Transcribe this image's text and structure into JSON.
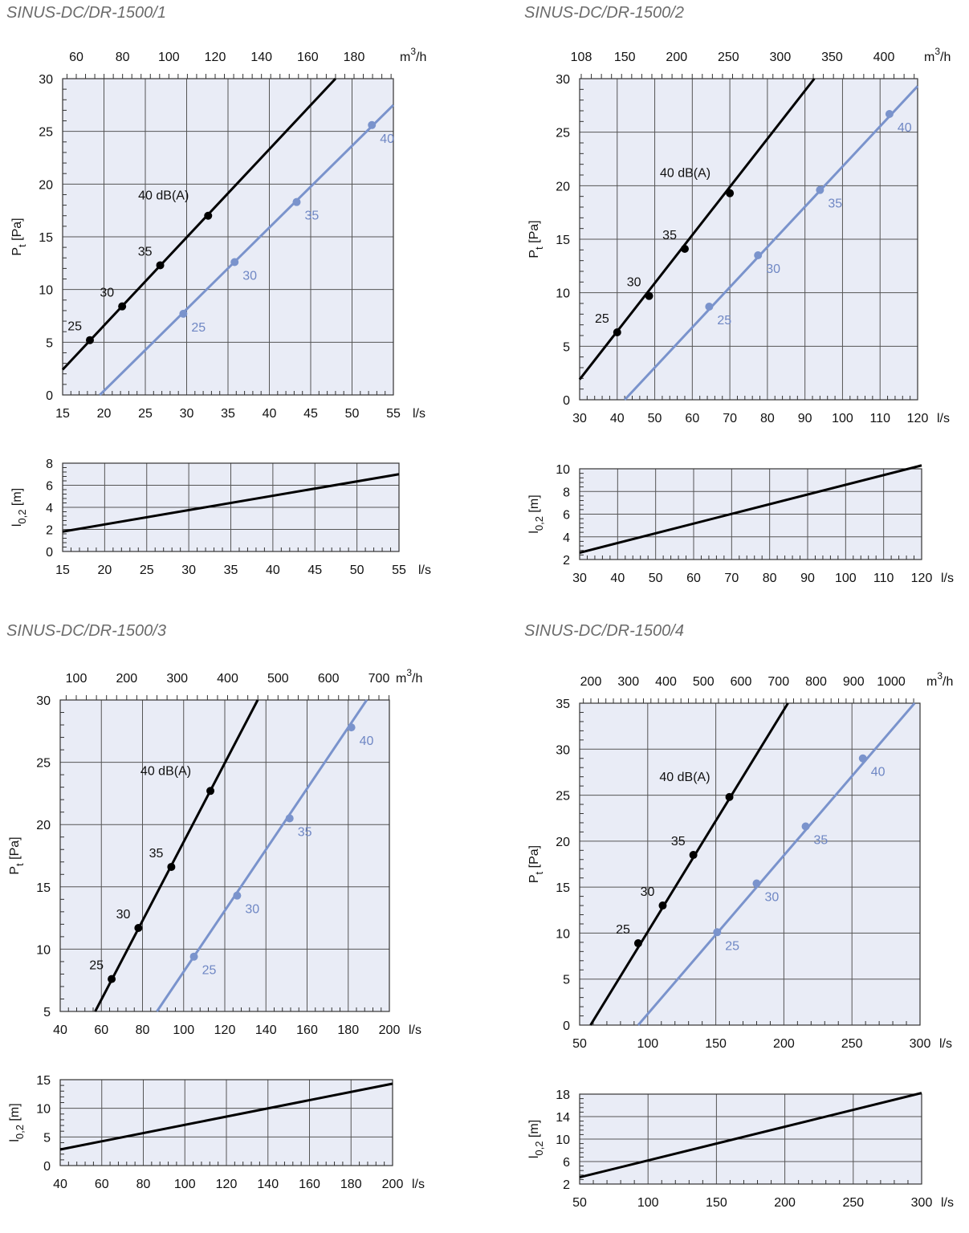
{
  "colors": {
    "plot_bg": "#e9ecf6",
    "grid": "#555555",
    "series_black": "#000000",
    "series_blue": "#7a93cc",
    "label_blue": "#6f87c4"
  },
  "chart_data": [
    {
      "id": "c1",
      "type": "line",
      "title": "SINUS-DC/DR-1500/1",
      "pressure": {
        "ylabel": "Pt [Pa]",
        "xlabel": "l/s",
        "top_xlabel": "m3/h",
        "xlim": [
          15,
          55
        ],
        "ylim": [
          0,
          30
        ],
        "xticks": [
          15,
          20,
          25,
          30,
          35,
          40,
          45,
          50,
          55
        ],
        "yticks": [
          0,
          5,
          10,
          15,
          20,
          25,
          30
        ],
        "top_ticks": [
          60,
          80,
          100,
          120,
          140,
          160,
          180
        ],
        "series": [
          {
            "color": "black",
            "line": [
              [
                15,
                2.4
              ],
              [
                48,
                30
              ]
            ],
            "points": [
              {
                "x": 18.3,
                "y": 5.2,
                "label": "25"
              },
              {
                "x": 22.2,
                "y": 8.4,
                "label": "30"
              },
              {
                "x": 26.8,
                "y": 12.3,
                "label": "35"
              },
              {
                "x": 32.6,
                "y": 17.0,
                "label": "40 dB(A)"
              }
            ]
          },
          {
            "color": "blue",
            "line": [
              [
                19.5,
                0
              ],
              [
                55,
                27.5
              ]
            ],
            "points": [
              {
                "x": 29.6,
                "y": 7.7,
                "label": "25"
              },
              {
                "x": 35.8,
                "y": 12.6,
                "label": "30"
              },
              {
                "x": 43.3,
                "y": 18.3,
                "label": "35"
              },
              {
                "x": 52.4,
                "y": 25.6,
                "label": "40"
              }
            ]
          }
        ]
      },
      "throw": {
        "ylabel": "l0,2 [m]",
        "xlabel": "l/s",
        "xlim": [
          15,
          55
        ],
        "ylim": [
          0,
          8
        ],
        "xticks": [
          15,
          20,
          25,
          30,
          35,
          40,
          45,
          50,
          55
        ],
        "yticks": [
          0,
          2,
          4,
          6,
          8
        ],
        "line": [
          [
            15,
            1.8
          ],
          [
            55,
            7.0
          ]
        ]
      }
    },
    {
      "id": "c2",
      "type": "line",
      "title": "SINUS-DC/DR-1500/2",
      "pressure": {
        "ylabel": "Pt [Pa]",
        "xlabel": "l/s",
        "top_xlabel": "m3/h",
        "xlim": [
          30,
          120
        ],
        "ylim": [
          0,
          30
        ],
        "xticks": [
          30,
          40,
          50,
          60,
          70,
          80,
          90,
          100,
          110,
          120
        ],
        "yticks": [
          0,
          5,
          10,
          15,
          20,
          25,
          30
        ],
        "top_ticks": [
          108,
          150,
          200,
          250,
          300,
          350,
          400
        ],
        "series": [
          {
            "color": "black",
            "line": [
              [
                30,
                1.9
              ],
              [
                92.5,
                30
              ]
            ],
            "points": [
              {
                "x": 40,
                "y": 6.3,
                "label": "25"
              },
              {
                "x": 48.5,
                "y": 9.7,
                "label": "30"
              },
              {
                "x": 58,
                "y": 14.1,
                "label": "35"
              },
              {
                "x": 70,
                "y": 19.3,
                "label": "40 dB(A)"
              }
            ]
          },
          {
            "color": "blue",
            "line": [
              [
                42,
                0
              ],
              [
                120,
                29.3
              ]
            ],
            "points": [
              {
                "x": 64.5,
                "y": 8.7,
                "label": "25"
              },
              {
                "x": 77.5,
                "y": 13.5,
                "label": "30"
              },
              {
                "x": 94,
                "y": 19.6,
                "label": "35"
              },
              {
                "x": 112.5,
                "y": 26.7,
                "label": "40"
              }
            ]
          }
        ]
      },
      "throw": {
        "ylabel": "l0,2 [m]",
        "xlabel": "l/s",
        "xlim": [
          30,
          120
        ],
        "ylim": [
          2,
          10
        ],
        "xticks": [
          30,
          40,
          50,
          60,
          70,
          80,
          90,
          100,
          110,
          120
        ],
        "yticks": [
          2,
          4,
          6,
          8,
          10
        ],
        "line": [
          [
            30,
            2.6
          ],
          [
            120,
            10.3
          ]
        ]
      }
    },
    {
      "id": "c3",
      "type": "line",
      "title": "SINUS-DC/DR-1500/3",
      "pressure": {
        "ylabel": "Pt [Pa]",
        "xlabel": "l/s",
        "top_xlabel": "m3/h",
        "xlim": [
          40,
          200
        ],
        "ylim": [
          5,
          30
        ],
        "xticks": [
          40,
          60,
          80,
          100,
          120,
          140,
          160,
          180,
          200
        ],
        "yticks": [
          5,
          10,
          15,
          20,
          25,
          30
        ],
        "top_ticks": [
          100,
          200,
          300,
          400,
          500,
          600,
          700
        ],
        "series": [
          {
            "color": "black",
            "line": [
              [
                57,
                5
              ],
              [
                136,
                30
              ]
            ],
            "points": [
              {
                "x": 65,
                "y": 7.6,
                "label": "25"
              },
              {
                "x": 78,
                "y": 11.7,
                "label": "30"
              },
              {
                "x": 94,
                "y": 16.6,
                "label": "35"
              },
              {
                "x": 113,
                "y": 22.7,
                "label": "40 dB(A)"
              }
            ]
          },
          {
            "color": "blue",
            "line": [
              [
                87,
                5
              ],
              [
                189,
                30
              ]
            ],
            "points": [
              {
                "x": 105,
                "y": 9.4,
                "label": "25"
              },
              {
                "x": 126,
                "y": 14.3,
                "label": "30"
              },
              {
                "x": 151.5,
                "y": 20.5,
                "label": "35"
              },
              {
                "x": 181.5,
                "y": 27.8,
                "label": "40"
              }
            ]
          }
        ]
      },
      "throw": {
        "ylabel": "l0,2 [m]",
        "xlabel": "l/s",
        "xlim": [
          40,
          200
        ],
        "ylim": [
          0,
          15
        ],
        "xticks": [
          40,
          60,
          80,
          100,
          120,
          140,
          160,
          180,
          200
        ],
        "yticks": [
          0,
          5,
          10,
          15
        ],
        "line": [
          [
            40,
            2.8
          ],
          [
            200,
            14.3
          ]
        ]
      }
    },
    {
      "id": "c4",
      "type": "line",
      "title": "SINUS-DC/DR-1500/4",
      "pressure": {
        "ylabel": "Pt [Pa]",
        "xlabel": "l/s",
        "top_xlabel": "m3/h",
        "xlim": [
          50,
          300
        ],
        "ylim": [
          0,
          35
        ],
        "xticks": [
          50,
          100,
          150,
          200,
          250,
          300
        ],
        "yticks": [
          0,
          5,
          10,
          15,
          20,
          25,
          30,
          35
        ],
        "top_ticks": [
          200,
          300,
          400,
          500,
          600,
          700,
          800,
          900,
          1000
        ],
        "series": [
          {
            "color": "black",
            "line": [
              [
                58,
                0
              ],
              [
                203,
                35
              ]
            ],
            "points": [
              {
                "x": 93,
                "y": 8.9,
                "label": "25"
              },
              {
                "x": 111,
                "y": 13.0,
                "label": "30"
              },
              {
                "x": 133.5,
                "y": 18.5,
                "label": "35"
              },
              {
                "x": 160,
                "y": 24.8,
                "label": "40 dB(A)"
              }
            ]
          },
          {
            "color": "blue",
            "line": [
              [
                93,
                0
              ],
              [
                296,
                35
              ]
            ],
            "points": [
              {
                "x": 151,
                "y": 10.1,
                "label": "25"
              },
              {
                "x": 180,
                "y": 15.4,
                "label": "30"
              },
              {
                "x": 216,
                "y": 21.6,
                "label": "35"
              },
              {
                "x": 258,
                "y": 29.0,
                "label": "40"
              }
            ]
          }
        ]
      },
      "throw": {
        "ylabel": "l0,2 [m]",
        "xlabel": "l/s",
        "xlim": [
          50,
          300
        ],
        "ylim": [
          2,
          18
        ],
        "xticks": [
          50,
          100,
          150,
          200,
          250,
          300
        ],
        "yticks": [
          2,
          6,
          10,
          14,
          18
        ],
        "line": [
          [
            50,
            3.2
          ],
          [
            300,
            18.2
          ]
        ]
      }
    }
  ]
}
